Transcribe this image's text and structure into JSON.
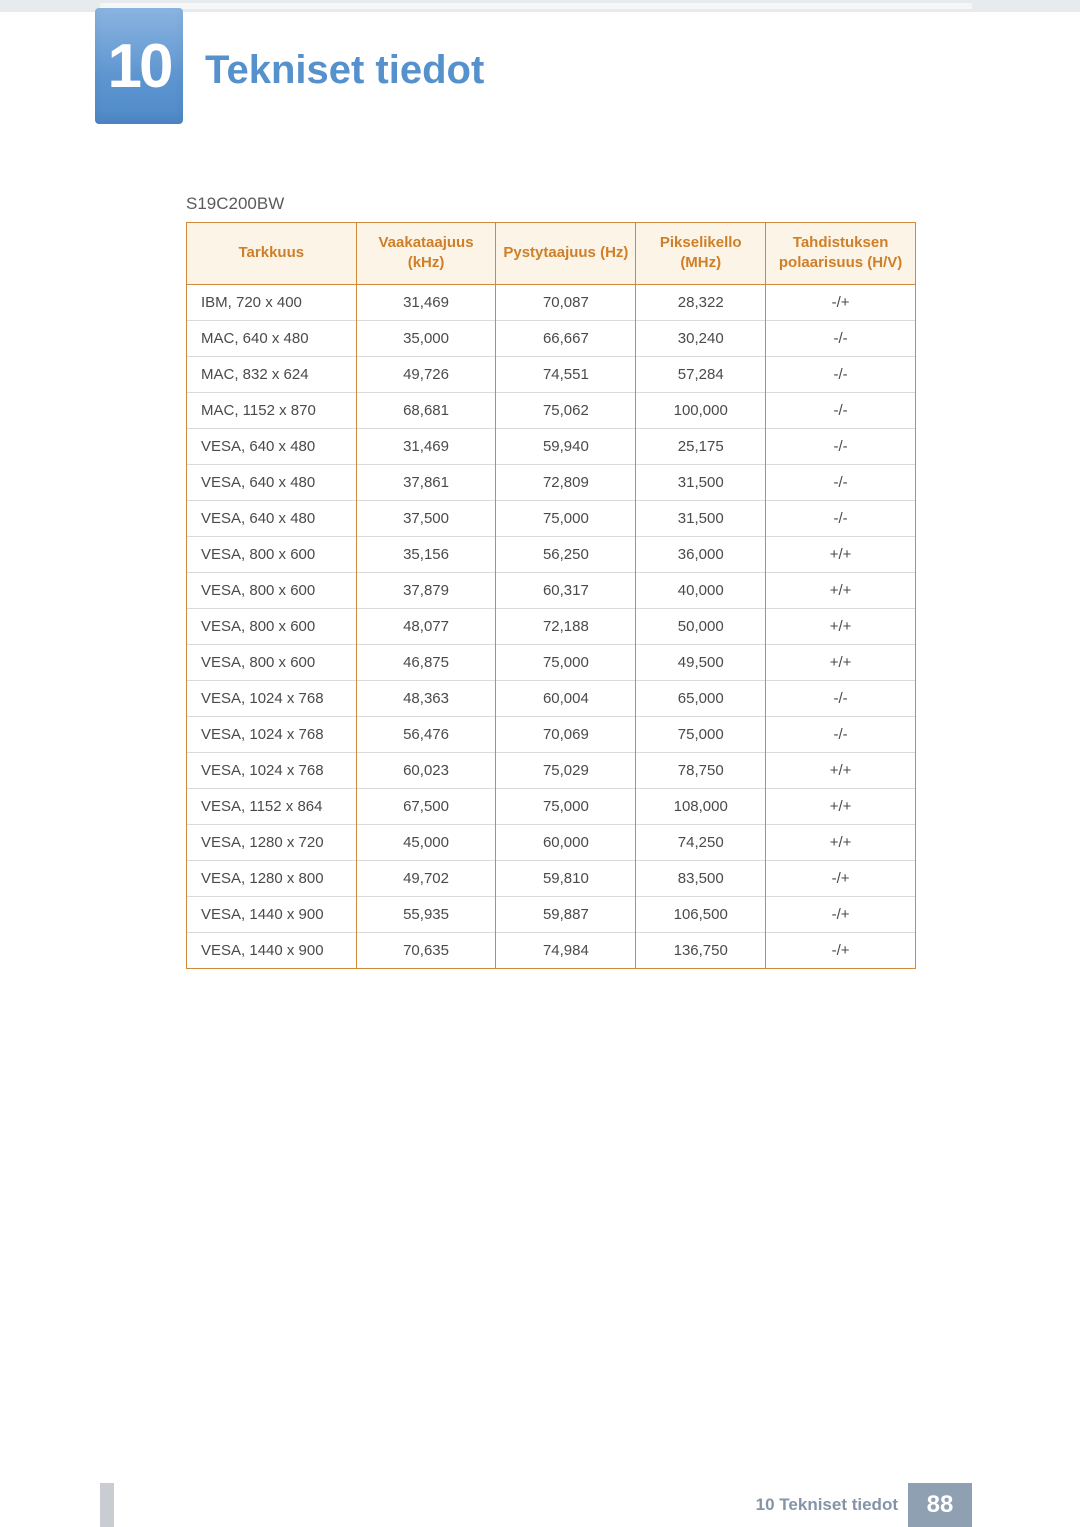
{
  "chapter": {
    "number": "10",
    "title": "Tekniset tiedot",
    "badge_gradient_top": "#8ab4e0",
    "badge_gradient_bottom": "#4f8ac9",
    "title_color": "#5591cd"
  },
  "model": "S19C200BW",
  "table": {
    "header_bg": "#fbf4e7",
    "header_text_color": "#cf7f28",
    "border_color": "#d08a3a",
    "row_border_color": "#dadada",
    "columns": [
      {
        "key": "resolution",
        "label": "Tarkkuus"
      },
      {
        "key": "hfreq",
        "label": "Vaakataajuus (kHz)"
      },
      {
        "key": "vfreq",
        "label": "Pystytaajuus (Hz)"
      },
      {
        "key": "pixclk",
        "label": "Pikselikello (MHz)"
      },
      {
        "key": "polarity",
        "label": "Tahdistuksen polaarisuus (H/V)"
      }
    ],
    "rows": [
      [
        "IBM, 720 x 400",
        "31,469",
        "70,087",
        "28,322",
        "-/+"
      ],
      [
        "MAC, 640 x 480",
        "35,000",
        "66,667",
        "30,240",
        "-/-"
      ],
      [
        "MAC, 832 x 624",
        "49,726",
        "74,551",
        "57,284",
        "-/-"
      ],
      [
        "MAC, 1152 x 870",
        "68,681",
        "75,062",
        "100,000",
        "-/-"
      ],
      [
        "VESA, 640 x 480",
        "31,469",
        "59,940",
        "25,175",
        "-/-"
      ],
      [
        "VESA, 640 x 480",
        "37,861",
        "72,809",
        "31,500",
        "-/-"
      ],
      [
        "VESA, 640 x 480",
        "37,500",
        "75,000",
        "31,500",
        "-/-"
      ],
      [
        "VESA, 800 x 600",
        "35,156",
        "56,250",
        "36,000",
        "+/+"
      ],
      [
        "VESA, 800 x 600",
        "37,879",
        "60,317",
        "40,000",
        "+/+"
      ],
      [
        "VESA, 800 x 600",
        "48,077",
        "72,188",
        "50,000",
        "+/+"
      ],
      [
        "VESA, 800 x 600",
        "46,875",
        "75,000",
        "49,500",
        "+/+"
      ],
      [
        "VESA, 1024 x 768",
        "48,363",
        "60,004",
        "65,000",
        "-/-"
      ],
      [
        "VESA, 1024 x 768",
        "56,476",
        "70,069",
        "75,000",
        "-/-"
      ],
      [
        "VESA, 1024 x 768",
        "60,023",
        "75,029",
        "78,750",
        "+/+"
      ],
      [
        "VESA, 1152 x 864",
        "67,500",
        "75,000",
        "108,000",
        "+/+"
      ],
      [
        "VESA, 1280 x 720",
        "45,000",
        "60,000",
        "74,250",
        "+/+"
      ],
      [
        "VESA, 1280 x 800",
        "49,702",
        "59,810",
        "83,500",
        "-/+"
      ],
      [
        "VESA, 1440 x 900",
        "55,935",
        "59,887",
        "106,500",
        "-/+"
      ],
      [
        "VESA, 1440 x 900",
        "70,635",
        "74,984",
        "136,750",
        "-/+"
      ]
    ]
  },
  "footer": {
    "section_label": "10 Tekniset tiedot",
    "page_number": "88",
    "page_badge_bg": "#8ea0b1",
    "text_color": "#8395a6"
  }
}
